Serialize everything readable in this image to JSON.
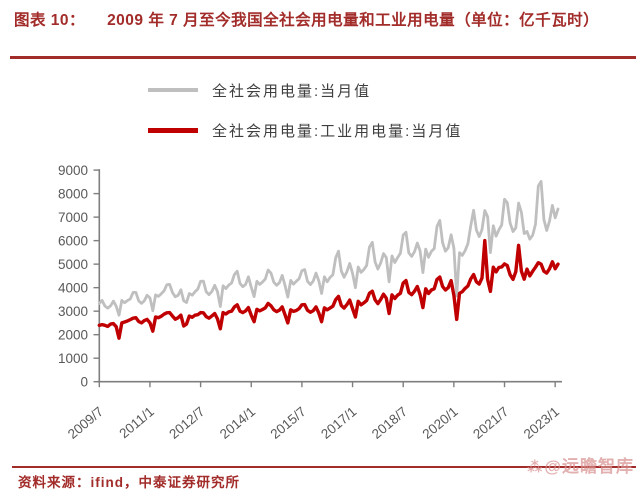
{
  "header": {
    "figure_label": "图表 10：",
    "figure_title": "2009 年 7 月至今我国全社会用电量和工业用电量（单位：亿千瓦时）"
  },
  "legend": [
    {
      "label": "全社会用电量:当月值",
      "color": "#bfbfbf"
    },
    {
      "label": "全社会用电量:工业用电量:当月值",
      "color": "#c00000"
    }
  ],
  "footer": {
    "source": "资料来源：ifind，中泰证券研究所",
    "watermark_icon": "⁂",
    "watermark": "@远瞻智库"
  },
  "colors": {
    "accent_red": "#a22c29",
    "watermark_red": "#d89391",
    "axis": "#7f7f7f",
    "tick_text": "#595959",
    "series_total": "#bfbfbf",
    "series_industrial": "#c00000"
  },
  "chart_data": {
    "type": "line",
    "title": "2009年7月至今我国全社会用电量和工业用电量",
    "unit": "亿千瓦时",
    "x_frequency": "monthly",
    "x_start": "2009/7",
    "x_end": "2023/2",
    "x_tick_labels": [
      "2009/7",
      "2011/1",
      "2012/7",
      "2014/1",
      "2015/7",
      "2017/1",
      "2018/7",
      "2020/1",
      "2021/7",
      "2023/1"
    ],
    "x_tick_month_indices": [
      0,
      18,
      36,
      54,
      72,
      90,
      108,
      126,
      144,
      162
    ],
    "ylim": [
      0,
      9000
    ],
    "y_tick_step": 1000,
    "grid": false,
    "legend_position": "top",
    "series": [
      {
        "name": "全社会用电量:当月值",
        "color": "#bfbfbf",
        "values": [
          3330,
          3460,
          3220,
          3130,
          3230,
          3430,
          3210,
          2830,
          3460,
          3360,
          3450,
          3520,
          3800,
          3800,
          3440,
          3330,
          3440,
          3680,
          3560,
          3020,
          3690,
          3630,
          3740,
          3860,
          4120,
          4140,
          3790,
          3610,
          3670,
          3910,
          3440,
          3370,
          3750,
          3680,
          3830,
          3940,
          4270,
          4280,
          3830,
          3700,
          3840,
          4100,
          3830,
          3200,
          4080,
          3960,
          4110,
          4200,
          4560,
          4700,
          4180,
          4040,
          4140,
          4460,
          4010,
          3620,
          4270,
          4140,
          4240,
          4370,
          4750,
          4620,
          4230,
          4100,
          4210,
          4520,
          4100,
          3600,
          4310,
          4150,
          4270,
          4380,
          4720,
          4770,
          4270,
          4130,
          4280,
          4620,
          4290,
          3750,
          4460,
          4250,
          4430,
          4550,
          5270,
          5550,
          4710,
          4440,
          4680,
          5030,
          4600,
          4000,
          4880,
          4650,
          4770,
          4940,
          5720,
          5930,
          5090,
          4790,
          5050,
          5450,
          5280,
          4250,
          5350,
          5070,
          5280,
          5460,
          6240,
          6360,
          5480,
          5330,
          5530,
          5900,
          5560,
          4640,
          5640,
          5290,
          5540,
          5660,
          6600,
          6860,
          5910,
          5550,
          5700,
          6250,
          5680,
          3650,
          5490,
          5370,
          5570,
          5870,
          6620,
          7290,
          6450,
          6170,
          6470,
          7280,
          7020,
          5490,
          6630,
          6190,
          6460,
          6670,
          7760,
          7610,
          6750,
          6390,
          6540,
          7600,
          7200,
          6300,
          6390,
          6060,
          6230,
          6700,
          8320,
          8520,
          6900,
          6430,
          6830,
          7500,
          6970,
          7350
        ]
      },
      {
        "name": "全社会用电量:工业用电量:当月值",
        "color": "#c00000",
        "values": [
          2400,
          2430,
          2400,
          2350,
          2450,
          2470,
          2340,
          1850,
          2500,
          2540,
          2580,
          2640,
          2700,
          2720,
          2560,
          2500,
          2600,
          2650,
          2500,
          2150,
          2750,
          2720,
          2780,
          2870,
          2930,
          2940,
          2790,
          2660,
          2720,
          2830,
          2370,
          2450,
          2790,
          2740,
          2830,
          2850,
          2940,
          2930,
          2770,
          2700,
          2800,
          2900,
          2670,
          2250,
          2940,
          2880,
          2970,
          3000,
          3180,
          3270,
          3000,
          2940,
          3010,
          3150,
          2820,
          2550,
          3080,
          3010,
          3070,
          3140,
          3330,
          3230,
          3060,
          2980,
          3040,
          3180,
          2850,
          2500,
          3060,
          2990,
          3030,
          3110,
          3270,
          3280,
          3040,
          2950,
          3020,
          3180,
          2920,
          2550,
          3140,
          3060,
          3130,
          3210,
          3490,
          3630,
          3240,
          3130,
          3280,
          3470,
          3100,
          2750,
          3420,
          3270,
          3350,
          3450,
          3760,
          3850,
          3480,
          3320,
          3500,
          3720,
          3550,
          2900,
          3690,
          3540,
          3680,
          3760,
          4200,
          4300,
          3800,
          3700,
          3850,
          4050,
          3700,
          3150,
          3950,
          3750,
          3900,
          3950,
          4350,
          4450,
          4050,
          3900,
          4000,
          4300,
          3670,
          2650,
          3760,
          3830,
          3970,
          4070,
          4370,
          4560,
          4250,
          4150,
          4410,
          6000,
          4350,
          3840,
          4870,
          4670,
          4860,
          4880,
          5010,
          4940,
          4550,
          4350,
          4680,
          5800,
          4700,
          4360,
          4790,
          4500,
          4700,
          4870,
          5060,
          5000,
          4700,
          4620,
          4800,
          5100,
          4800,
          5000
        ]
      }
    ]
  }
}
